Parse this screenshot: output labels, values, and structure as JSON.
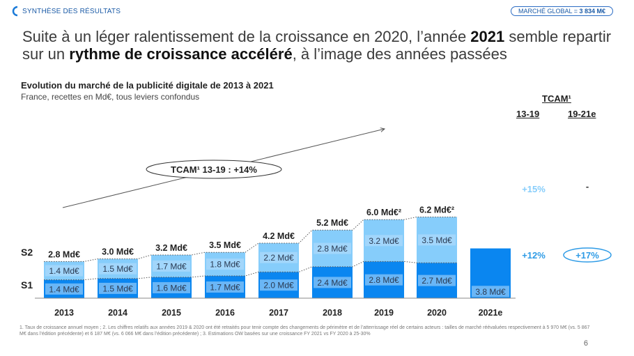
{
  "header": {
    "section_label": "SYNTHÈSE DES RÉSULTATS",
    "market_label": "MARCHÉ GLOBAL = ",
    "market_value": "3 834 M€"
  },
  "headline": {
    "part1": "Suite à un léger ralentissement de la croissance en 2020, l’année ",
    "bold1": "2021",
    "part2": " semble repartir sur un ",
    "bold2": "rythme de croissance accéléré",
    "part3": ", à l’image des années passées"
  },
  "chart_data": {
    "type": "bar",
    "title": "Evolution du marché de la publicité digitale de 2013 à 2021",
    "subtitle": "France, recettes en Md€, tous leviers confondus",
    "categories": [
      "2013",
      "2014",
      "2015",
      "2016",
      "2017",
      "2018",
      "2019",
      "2020",
      "2021e"
    ],
    "series": [
      {
        "name": "S1",
        "values": [
          1.4,
          1.5,
          1.6,
          1.7,
          2.0,
          2.4,
          2.8,
          2.7,
          null
        ],
        "labels": [
          "1.4 Md€",
          "1.5 Md€",
          "1.6 Md€",
          "1.7 Md€",
          "2.0 Md€",
          "2.4 Md€",
          "2.8 Md€",
          "2.7 Md€",
          ""
        ]
      },
      {
        "name": "S2",
        "values": [
          1.4,
          1.5,
          1.7,
          1.8,
          2.2,
          2.8,
          3.2,
          3.5,
          null
        ],
        "labels": [
          "1.4 Md€",
          "1.5 Md€",
          "1.7 Md€",
          "1.8 Md€",
          "2.2 Md€",
          "2.8 Md€",
          "3.2 Md€",
          "3.5 Md€",
          ""
        ]
      }
    ],
    "totals": [
      "2.8 Md€",
      "3.0 Md€",
      "3.2 Md€",
      "3.5 Md€",
      "4.2 Md€",
      "5.2 Md€",
      "6.0 Md€²",
      "6.2 Md€²",
      ""
    ],
    "h1_2021": {
      "value": 3.8,
      "label": "3.8 Md€"
    },
    "trend_annotation": "TCAM¹ 13-19 : +14%",
    "colors": {
      "s1": "#0a86f0",
      "s2": "#86cdfb",
      "h1_2021": "#0a86f0",
      "label_box": "#b9dffb",
      "accent": "#2e9be6"
    }
  },
  "tcam_table": {
    "title": "TCAM¹",
    "col1": "13-19",
    "col2": "19-21e",
    "s2_col1": "+15%",
    "s2_col2": "-",
    "s1_col1": "+12%",
    "s1_col2": "+17%"
  },
  "footnote": "1. Taux de croissance annuel moyen ; 2. Les chiffres relatifs aux années 2019 & 2020 ont été retraités pour tenir compte des changements de périmètre et de l’atterrissage réel de certains acteurs : tailles de marché réévaluées respectivement à 5 970 M€ (vs. 5 867 M€ dans l’édition précédente) et 6 187 M€ (vs. 6 066 M€ dans l’édition précédente) ; 3. Estimations OW basées sur une croissance FY 2021 vs FY 2020 à 25-30%",
  "page_number": "6"
}
